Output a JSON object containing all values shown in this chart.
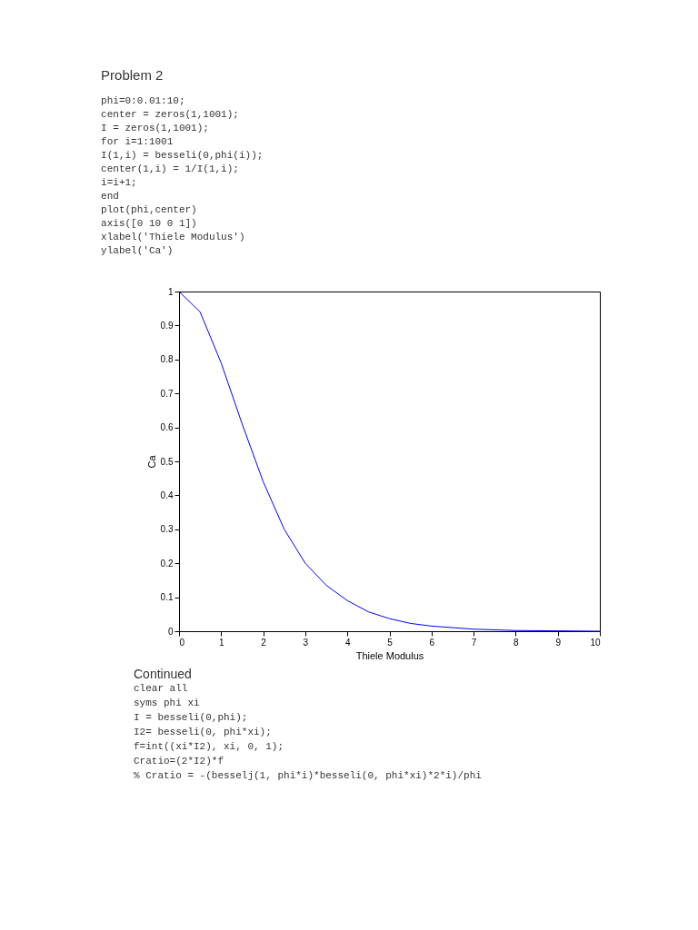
{
  "chart_data": {
    "type": "line",
    "title": "Problem 2",
    "subtitle": "phi=0:0.01:10;\ncenter = zeros(1,1001);\nI = zeros(1,1001);\nfor i=1:1001\n    I(1,i) = besseli(0,phi(i));\n    center(1,i) = 1/I(1,i);\n    i=i+1;\nend\n \nplot(phi,center)\naxis([0 10 0 1])\nxlabel('Thiele Modulus')\nylabel('Ca')",
    "xlabel": "Thiele Modulus",
    "ylabel": "Ca",
    "x": [
      0,
      0.5,
      1,
      1.5,
      2,
      2.5,
      3,
      3.5,
      4,
      4.5,
      5,
      5.5,
      6,
      7,
      8,
      9,
      10
    ],
    "series": [
      {
        "color": "#0000ff",
        "values": [
          1,
          0.94,
          0.79,
          0.61,
          0.44,
          0.3,
          0.2,
          0.135,
          0.09,
          0.057,
          0.037,
          0.023,
          0.015,
          0.006,
          0.002,
          0.001,
          0
        ]
      }
    ],
    "xlim": [
      0,
      10
    ],
    "xticks": [
      0,
      1,
      2,
      3,
      4,
      5,
      6,
      7,
      8,
      9,
      10
    ],
    "ylim": [
      0,
      1
    ],
    "yticks": [
      0,
      0.1,
      0.2,
      0.3,
      0.4,
      0.5,
      0.6,
      0.7,
      0.8,
      0.9,
      1
    ],
    "grid": false,
    "legend": false,
    "marker": "none",
    "line_style": "solid",
    "annotations": [
      "Continued",
      "clear all",
      "syms phi xi",
      "I = besseli(0,phi);",
      "I2= besseli(0, phi*xi);",
      "f=int((xi*I2), xi, 0, 1);",
      "Cratio=(2*I2)*f",
      "% Cratio = -(besselj(1, phi*i)*besseli(0, phi*xi)*2*i)/phi"
    ]
  }
}
